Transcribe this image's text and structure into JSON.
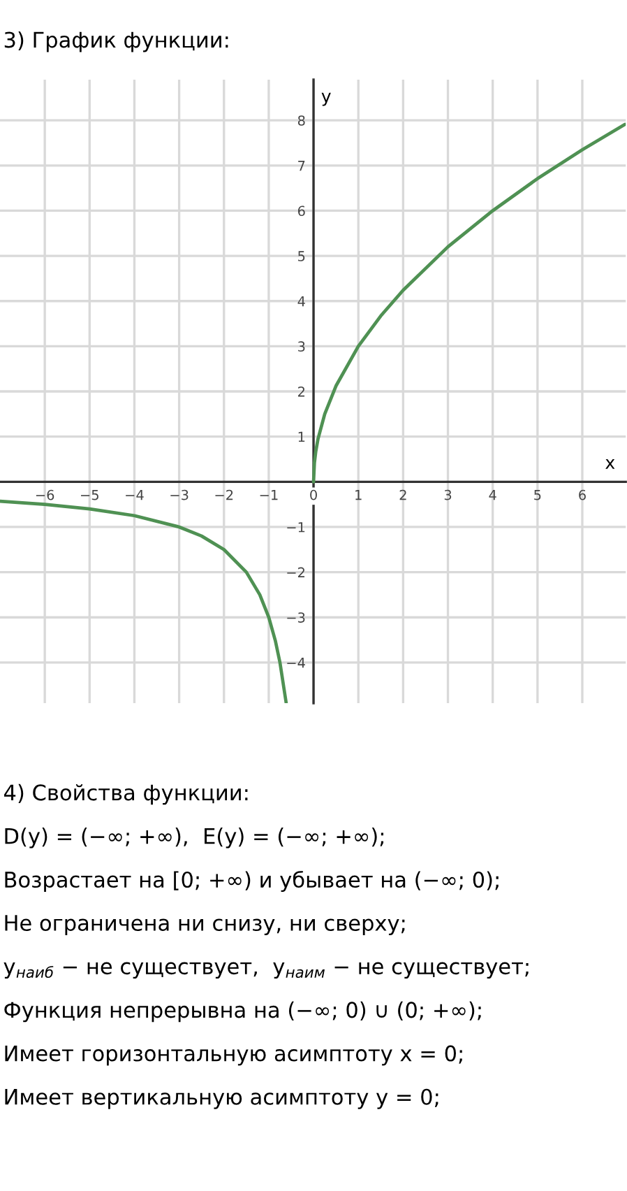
{
  "chart_data": {
    "type": "line",
    "title": "3) График функции:",
    "xlabel": "x",
    "ylabel": "y",
    "series": [
      {
        "color": "#4f9153",
        "x": [
          0,
          0.02,
          0.05,
          0.1,
          0.25,
          0.5,
          1,
          1.5,
          2,
          3,
          4,
          5,
          6,
          6.95
        ],
        "values": [
          0,
          0.42,
          0.67,
          0.95,
          1.5,
          2.12,
          3,
          3.67,
          4.24,
          5.2,
          6,
          6.71,
          7.35,
          7.91
        ]
      },
      {
        "color": "#4f9153",
        "x": [
          -7,
          -6,
          -5,
          -4,
          -3,
          -2.5,
          -2,
          -1.5,
          -1.2,
          -1,
          -0.85,
          -0.75,
          -0.61
        ],
        "values": [
          -0.43,
          -0.5,
          -0.6,
          -0.75,
          -1,
          -1.2,
          -1.5,
          -2,
          -2.5,
          -3,
          -3.53,
          -4,
          -4.9
        ]
      }
    ],
    "xlim": [
      -7,
      6.97
    ],
    "ylim": [
      -4.9,
      8.9
    ],
    "xticks": [
      -6,
      -5,
      -4,
      -3,
      -2,
      -1,
      0,
      1,
      2,
      3,
      4,
      5,
      6
    ],
    "yticks": [
      -4,
      -3,
      -2,
      -1,
      1,
      2,
      3,
      4,
      5,
      6,
      7,
      8
    ],
    "grid": true,
    "line_style": "solid",
    "marker": "none",
    "annotations": [
      "4) Свойства функции:",
      "D(y) = (−∞; +∞),  E(y) = (−∞; +∞);",
      "Возрастает на [0; +∞) и убывает на (−∞; 0);",
      "Не ограничена ни снизу, ни сверху;",
      "y$_{наиб}$ − не существует,  y$_{наим}$ − не существует;",
      "Функция непрерывна на (−∞; 0) ∪ (0; +∞);",
      "Имеет горизонтальную асимптоту x = 0;",
      "Имеет вертикальную асимптоту y = 0;"
    ]
  }
}
